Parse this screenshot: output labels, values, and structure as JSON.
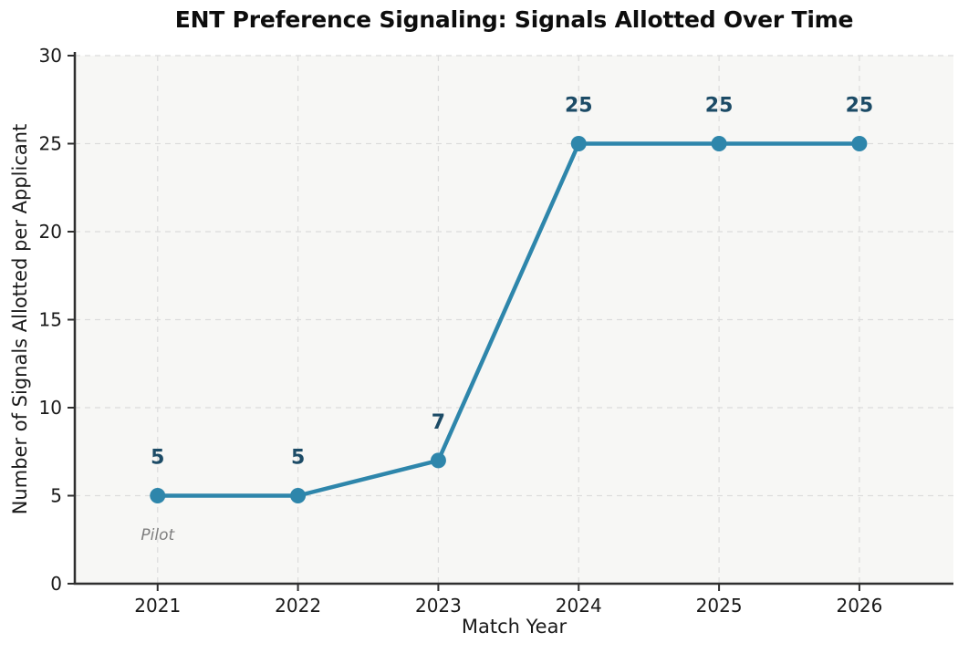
{
  "chart_data": {
    "type": "line",
    "title": "ENT Preference Signaling: Signals Allotted Over Time",
    "xlabel": "Match Year",
    "ylabel": "Number of Signals Allotted per Applicant",
    "x": [
      2021,
      2022,
      2023,
      2024,
      2025,
      2026
    ],
    "series": [
      {
        "name": "Signals Allotted per Applicant",
        "values": [
          5,
          5,
          7,
          25,
          25,
          25
        ]
      }
    ],
    "point_labels": [
      "5",
      "5",
      "7",
      "25",
      "25",
      "25"
    ],
    "annotations": [
      {
        "text": "Pilot",
        "x": 2021,
        "y": 2.5
      }
    ],
    "xticks": [
      2021,
      2022,
      2023,
      2024,
      2025,
      2026
    ],
    "yticks": [
      0,
      5,
      10,
      15,
      20,
      25,
      30
    ],
    "xlim": [
      2020.41,
      2026.67
    ],
    "ylim": [
      0,
      30
    ],
    "grid": true,
    "grid_style": "dashed",
    "legend": "none",
    "colors": {
      "line": "#2E86AB",
      "marker": "#2E86AB",
      "point_label": "#1C4B66",
      "title": "#0d0d0d",
      "axis_text": "#1a1a1a",
      "grid": "#dcdcdc",
      "spine": "#2f2f2f",
      "plot_bg": "#f7f7f5",
      "fig_bg": "#ffffff",
      "annotation": "#7f7f7f"
    }
  }
}
